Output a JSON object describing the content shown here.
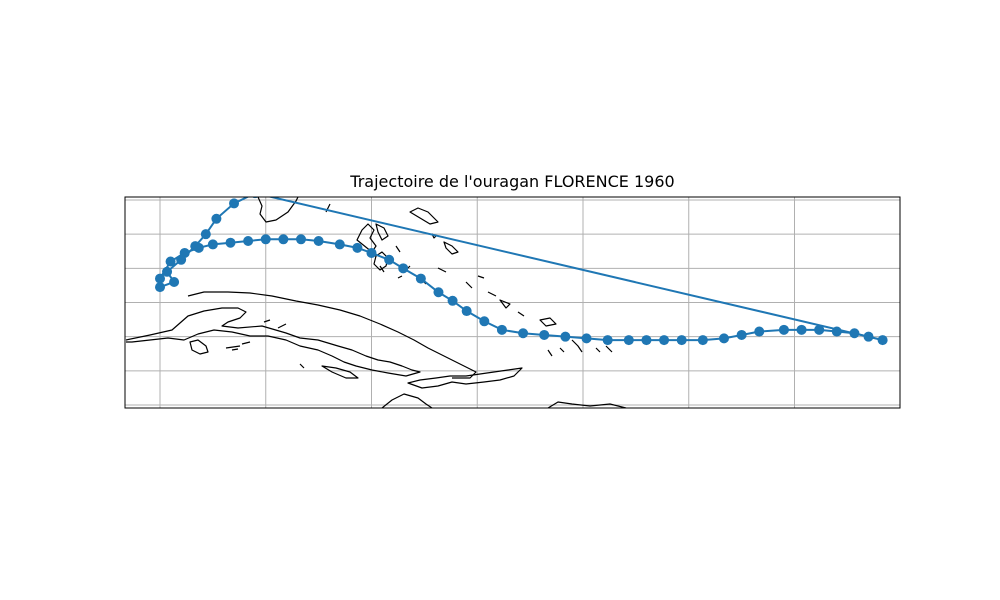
{
  "title": "Trajectoire de l'ouragan FLORENCE 1960",
  "colors": {
    "track": "#1f77b4",
    "land_outline": "#000000",
    "grid": "#b0b0b0",
    "frame": "#000000"
  },
  "map": {
    "projection": "PlateCarree",
    "extent_lon": [
      -87,
      -65
    ],
    "extent_lat": [
      17,
      23
    ],
    "gridlines": true,
    "grid_lon": [
      -86,
      -83,
      -80,
      -77,
      -74,
      -71,
      -68,
      -65
    ],
    "grid_lat": [
      17,
      18,
      19,
      20,
      21,
      22,
      23
    ]
  },
  "track": {
    "name": "FLORENCE 1960",
    "lon": [
      -65.5,
      -65.9,
      -66.3,
      -66.8,
      -67.3,
      -67.8,
      -68.3,
      -69.0,
      -69.5,
      -70.0,
      -70.6,
      -71.2,
      -71.7,
      -72.2,
      -72.7,
      -73.3,
      -73.9,
      -74.5,
      -75.1,
      -75.7,
      -76.3,
      -76.8,
      -77.3,
      -77.7,
      -78.1,
      -78.6,
      -79.1,
      -79.5,
      -80.0,
      -80.4,
      -80.9,
      -81.5,
      -82.0,
      -82.5,
      -83.0,
      -83.5,
      -84.0,
      -84.5,
      -84.9,
      -85.3,
      -85.7,
      -86.0,
      -86.0,
      -85.6,
      -85.8,
      -85.4,
      -85.0,
      -84.7,
      -84.4,
      -83.9,
      -83.3
    ],
    "lat": [
      18.9,
      19.0,
      19.1,
      19.15,
      19.2,
      19.2,
      19.2,
      19.15,
      19.05,
      18.95,
      18.9,
      18.9,
      18.9,
      18.9,
      18.9,
      18.9,
      18.95,
      19.0,
      19.05,
      19.1,
      19.2,
      19.45,
      19.75,
      20.05,
      20.3,
      20.7,
      21.0,
      21.25,
      21.45,
      21.6,
      21.7,
      21.8,
      21.85,
      21.85,
      21.85,
      21.8,
      21.75,
      21.7,
      21.6,
      21.45,
      21.2,
      20.7,
      20.45,
      20.6,
      20.9,
      21.25,
      21.65,
      22.0,
      22.45,
      22.9,
      23.2
    ]
  }
}
